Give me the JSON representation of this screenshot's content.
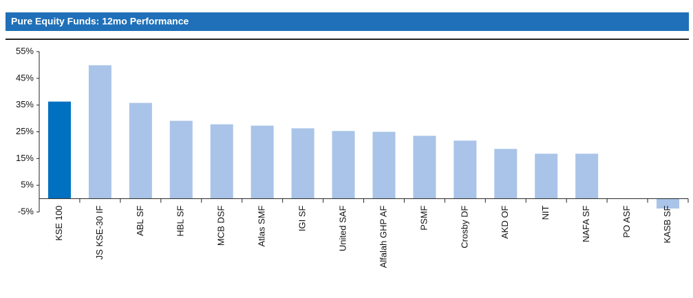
{
  "chart_data": {
    "type": "bar",
    "title": "Pure Equity Funds: 12mo Performance",
    "categories": [
      "KSE 100",
      "JS KSE-30 IF",
      "ABL SF",
      "HBL SF",
      "MCB DSF",
      "Atlas SMF",
      "IGI SF",
      "United SAF",
      "Alfalah GHP AF",
      "PSMF",
      "Crosby DF",
      "AKD OF",
      "NIT",
      "NAFA SF",
      "PO ASF",
      "KASB SF"
    ],
    "values": [
      36.3,
      49.9,
      35.8,
      29.1,
      27.8,
      27.3,
      26.3,
      25.3,
      25.0,
      23.5,
      21.7,
      18.6,
      16.8,
      16.8,
      0,
      -3.7
    ],
    "colors": [
      "#0070c0",
      "#a9c4e8",
      "#a9c4e8",
      "#a9c4e8",
      "#a9c4e8",
      "#a9c4e8",
      "#a9c4e8",
      "#a9c4e8",
      "#a9c4e8",
      "#a9c4e8",
      "#a9c4e8",
      "#a9c4e8",
      "#a9c4e8",
      "#a9c4e8",
      "#a9c4e8",
      "#a9c4e8"
    ],
    "ylim": [
      -5,
      55
    ],
    "yticks": [
      {
        "value": -5,
        "label": "-5%"
      },
      {
        "value": 5,
        "label": "5%"
      },
      {
        "value": 15,
        "label": "15%"
      },
      {
        "value": 25,
        "label": "25%"
      },
      {
        "value": 35,
        "label": "35%"
      },
      {
        "value": 45,
        "label": "45%"
      },
      {
        "value": 55,
        "label": "55%"
      }
    ],
    "grid": false
  }
}
